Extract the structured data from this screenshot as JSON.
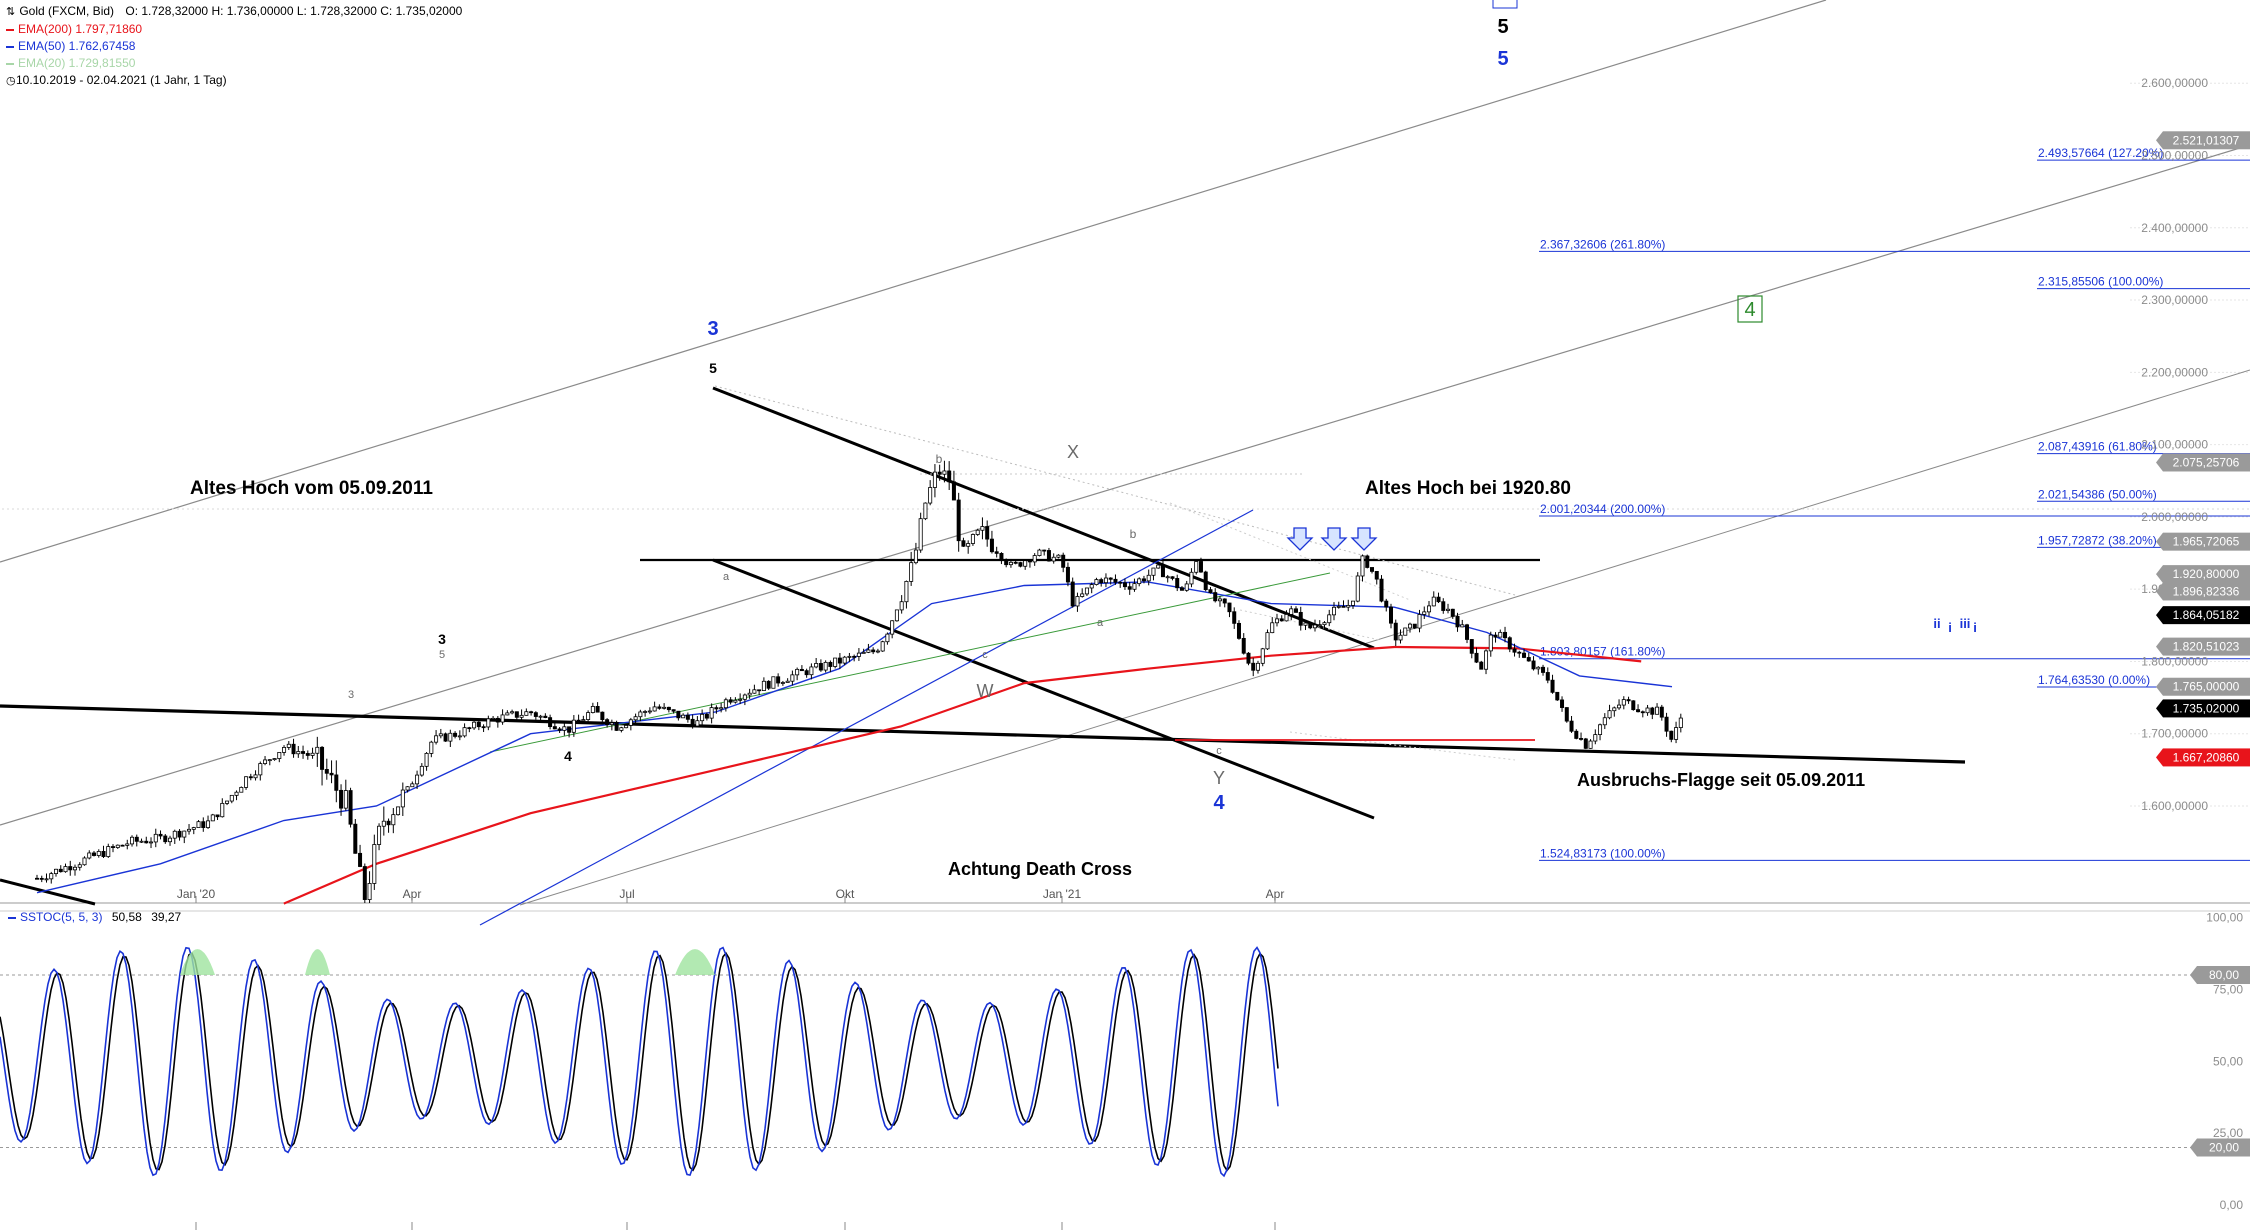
{
  "header": {
    "title": "Gold (FXCM, Bid)",
    "ohlc": "O: 1.728,32000  H: 1.736,00000  L: 1.728,32000  C: 1.735,02000",
    "ema200": "EMA(200)  1.797,71860",
    "ema50": "EMA(50)  1.762,67458",
    "ema20": "EMA(20)  1.729,81550",
    "range": "10.10.2019 - 02.04.2021   (1 Jahr, 1 Tag)",
    "range_icon": "clock-icon"
  },
  "stoch_legend": {
    "name": "SSTOC(5, 5, 3)",
    "k": "50,58",
    "d": "39,27"
  },
  "colors": {
    "ema200": "#e8141b",
    "ema50": "#1a34d6",
    "ema20": "#74b874",
    "fib": "#1a34d6",
    "candle": "#000000",
    "price_black": "#000000",
    "price_grey": "#8c8c8c",
    "price_red": "#e8141b",
    "wave_blue": "#1a34d6",
    "wave_green": "#2d8a2d"
  },
  "chart_data": {
    "type": "candlestick",
    "period": "10.10.2019 - 02.04.2021",
    "x_ticks": [
      "Jan '20",
      "Apr",
      "Jul",
      "Okt",
      "Jan '21",
      "Apr"
    ],
    "y_ticks": [
      "1.600,00000",
      "1.700,00000",
      "1.800,00000",
      "1.900,00000",
      "2.000,00000",
      "2.100,00000",
      "2.200,00000",
      "2.300,00000",
      "2.400,00000",
      "2.500,00000",
      "2.600,00000"
    ],
    "y_tick_values": [
      1600,
      1700,
      1800,
      1900,
      2000,
      2100,
      2200,
      2300,
      2400,
      2500,
      2600
    ],
    "ylim": [
      1465,
      2625
    ],
    "price_path": [
      [
        0,
        1500
      ],
      [
        0.06,
        1520
      ],
      [
        0.15,
        1550
      ],
      [
        0.2,
        1555
      ],
      [
        0.28,
        1578
      ],
      [
        0.34,
        1640
      ],
      [
        0.4,
        1682
      ],
      [
        0.45,
        1668
      ],
      [
        0.5,
        1605
      ],
      [
        0.53,
        1470
      ],
      [
        0.56,
        1580
      ],
      [
        0.6,
        1620
      ],
      [
        0.64,
        1690
      ],
      [
        0.68,
        1700
      ],
      [
        0.74,
        1720
      ],
      [
        0.8,
        1730
      ],
      [
        0.86,
        1705
      ],
      [
        0.9,
        1732
      ],
      [
        0.94,
        1710
      ],
      [
        1.0,
        1738
      ],
      [
        1.07,
        1715
      ],
      [
        1.12,
        1748
      ],
      [
        1.18,
        1768
      ],
      [
        1.24,
        1785
      ],
      [
        1.3,
        1800
      ],
      [
        1.36,
        1815
      ],
      [
        1.38,
        1845
      ],
      [
        1.42,
        1935
      ],
      [
        1.44,
        2020
      ],
      [
        1.46,
        2065
      ],
      [
        1.48,
        2050
      ],
      [
        1.5,
        1945
      ],
      [
        1.53,
        1980
      ],
      [
        1.58,
        1930
      ],
      [
        1.62,
        1950
      ],
      [
        1.66,
        1940
      ],
      [
        1.68,
        1878
      ],
      [
        1.72,
        1915
      ],
      [
        1.77,
        1905
      ],
      [
        1.82,
        1928
      ],
      [
        1.86,
        1895
      ],
      [
        1.88,
        1945
      ],
      [
        1.9,
        1890
      ],
      [
        1.93,
        1872
      ],
      [
        1.95,
        1830
      ],
      [
        1.97,
        1785
      ],
      [
        2.0,
        1850
      ],
      [
        2.03,
        1872
      ],
      [
        2.06,
        1845
      ],
      [
        2.1,
        1868
      ],
      [
        2.13,
        1880
      ],
      [
        2.15,
        1945
      ],
      [
        2.17,
        1915
      ],
      [
        2.2,
        1832
      ],
      [
        2.23,
        1848
      ],
      [
        2.26,
        1885
      ],
      [
        2.29,
        1870
      ],
      [
        2.31,
        1845
      ],
      [
        2.34,
        1790
      ],
      [
        2.36,
        1842
      ],
      [
        2.39,
        1820
      ],
      [
        2.42,
        1795
      ],
      [
        2.45,
        1775
      ],
      [
        2.48,
        1715
      ],
      [
        2.51,
        1685
      ],
      [
        2.54,
        1720
      ],
      [
        2.57,
        1745
      ],
      [
        2.6,
        1735
      ],
      [
        2.63,
        1730
      ],
      [
        2.65,
        1690
      ],
      [
        2.67,
        1735
      ]
    ],
    "series": [
      {
        "name": "EMA(200)",
        "values": [
          [
            0.4,
            1465
          ],
          [
            0.55,
            1520
          ],
          [
            0.8,
            1590
          ],
          [
            1.1,
            1650
          ],
          [
            1.4,
            1710
          ],
          [
            1.6,
            1770
          ],
          [
            1.8,
            1790
          ],
          [
            2.0,
            1808
          ],
          [
            2.2,
            1820
          ],
          [
            2.4,
            1818
          ],
          [
            2.6,
            1800
          ]
        ]
      },
      {
        "name": "EMA(50)",
        "values": [
          [
            0.0,
            1480
          ],
          [
            0.2,
            1520
          ],
          [
            0.4,
            1580
          ],
          [
            0.55,
            1600
          ],
          [
            0.8,
            1700
          ],
          [
            1.1,
            1730
          ],
          [
            1.3,
            1790
          ],
          [
            1.45,
            1880
          ],
          [
            1.6,
            1905
          ],
          [
            1.8,
            1910
          ],
          [
            2.0,
            1880
          ],
          [
            2.2,
            1875
          ],
          [
            2.35,
            1840
          ],
          [
            2.5,
            1780
          ],
          [
            2.65,
            1765
          ]
        ]
      }
    ],
    "fib_levels": [
      {
        "label": "2.493,57664 (127.20%)",
        "value": 2493.57664
      },
      {
        "label": "2.367,32606 (261.80%)",
        "value": 2367.32606
      },
      {
        "label": "2.315,85506 (100.00%)",
        "value": 2315.85506
      },
      {
        "label": "2.087,43916 (61.80%)",
        "value": 2087.43916
      },
      {
        "label": "2.021,54386 (50.00%)",
        "value": 2021.54386
      },
      {
        "label": "2.001,20344 (200.00%)",
        "value": 2001.20344
      },
      {
        "label": "1.957,72872 (38.20%)",
        "value": 1957.72872
      },
      {
        "label": "1.803,80157 (161.80%)",
        "value": 1803.80157
      },
      {
        "label": "1.764,63530 (0.00%)",
        "value": 1764.6353
      },
      {
        "label": "1.524,83173 (100.00%)",
        "value": 1524.83173
      }
    ],
    "price_tags": [
      {
        "label": "2.521,01307",
        "value": 2521.01307,
        "style": "grey"
      },
      {
        "label": "2.075,25706",
        "value": 2075.25706,
        "style": "grey"
      },
      {
        "label": "1.965,72065",
        "value": 1965.72065,
        "style": "grey"
      },
      {
        "label": "1.920,80000",
        "value": 1920.8,
        "style": "grey"
      },
      {
        "label": "1.896,82336",
        "value": 1896.82336,
        "style": "grey"
      },
      {
        "label": "1.864,05182",
        "value": 1864.05182,
        "style": "black"
      },
      {
        "label": "1.820,51023",
        "value": 1820.51023,
        "style": "grey"
      },
      {
        "label": "1.765,00000",
        "value": 1765.0,
        "style": "grey"
      },
      {
        "label": "1.735,02000",
        "value": 1735.02,
        "style": "black"
      },
      {
        "label": "1.667,20860",
        "value": 1667.2086,
        "style": "red"
      }
    ],
    "annotations": [
      {
        "text": "Altes Hoch vom 05.09.2011",
        "style": "note"
      },
      {
        "text": "Altes Hoch bei 1920.80",
        "style": "note"
      },
      {
        "text": "Ausbruchs-Flagge seit 05.09.2011",
        "style": "note"
      },
      {
        "text": "Achtung Death Cross",
        "style": "note"
      },
      {
        "text": "3",
        "style": "wave-blue"
      },
      {
        "text": "4",
        "style": "wave-blue"
      },
      {
        "text": "5",
        "style": "wave-blue"
      },
      {
        "text": "5",
        "style": "wave-black"
      },
      {
        "text": "4",
        "style": "wave-green-box"
      },
      {
        "text": "5",
        "style": "wave-black-small"
      },
      {
        "text": "3",
        "style": "wave-black-small"
      },
      {
        "text": "4",
        "style": "wave-black-small"
      },
      {
        "text": "W",
        "style": "wave-grey"
      },
      {
        "text": "X",
        "style": "wave-grey"
      },
      {
        "text": "Y",
        "style": "wave-grey"
      },
      {
        "text": "a",
        "style": "sub-grey"
      },
      {
        "text": "b",
        "style": "sub-grey"
      },
      {
        "text": "c",
        "style": "sub-grey"
      },
      {
        "text": "a",
        "style": "sub-grey"
      },
      {
        "text": "b",
        "style": "sub-grey"
      },
      {
        "text": "c",
        "style": "sub-grey"
      },
      {
        "text": "3",
        "style": "sub-grey"
      },
      {
        "text": "5",
        "style": "sub-grey"
      },
      {
        "text": "ii",
        "style": "sub-blue"
      },
      {
        "text": "i",
        "style": "sub-blue"
      },
      {
        "text": "iii",
        "style": "sub-blue"
      },
      {
        "text": "i",
        "style": "sub-blue"
      }
    ],
    "stochastic": {
      "name": "SSTOC(5, 5, 3)",
      "k_last": 50.58,
      "d_last": 39.27,
      "ylim": [
        0,
        100
      ],
      "y_ticks": [
        "100,00",
        "75,00",
        "50,00",
        "25,00",
        "0,00"
      ],
      "y_tick_values": [
        100,
        75,
        50,
        25,
        0
      ],
      "bands": [
        {
          "label": "80,00",
          "value": 80
        },
        {
          "label": "20,00",
          "value": 20
        }
      ]
    }
  }
}
